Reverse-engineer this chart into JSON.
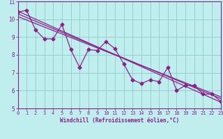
{
  "xlabel": "Windchill (Refroidissement éolien,°C)",
  "bg_color": "#c0eeee",
  "line_color": "#882288",
  "grid_color": "#99cccc",
  "ylim": [
    5,
    11
  ],
  "xlim": [
    0,
    23
  ],
  "yticks": [
    5,
    6,
    7,
    8,
    9,
    10,
    11
  ],
  "xticks": [
    0,
    1,
    2,
    3,
    4,
    5,
    6,
    7,
    8,
    9,
    10,
    11,
    12,
    13,
    14,
    15,
    16,
    17,
    18,
    19,
    20,
    21,
    22,
    23
  ],
  "data_x": [
    0,
    1,
    2,
    3,
    4,
    5,
    6,
    7,
    8,
    9,
    10,
    11,
    12,
    13,
    14,
    15,
    16,
    17,
    18,
    19,
    20,
    21,
    22,
    23
  ],
  "data_y": [
    10.4,
    10.5,
    9.4,
    8.9,
    8.9,
    9.7,
    8.3,
    7.3,
    8.3,
    8.25,
    8.75,
    8.35,
    7.5,
    6.6,
    6.4,
    6.6,
    6.5,
    7.3,
    6.0,
    6.3,
    6.3,
    5.8,
    5.8,
    5.4
  ],
  "trend_lines": [
    {
      "x0": 0,
      "y0": 10.45,
      "x1": 23,
      "y1": 5.35
    },
    {
      "x0": 0,
      "y0": 10.3,
      "x1": 23,
      "y1": 5.55
    },
    {
      "x0": 0,
      "y0": 10.15,
      "x1": 23,
      "y1": 5.65
    }
  ],
  "marker": "D",
  "markersize": 2.5,
  "linewidth": 0.9,
  "xlabel_fontsize": 5.5,
  "tick_fontsize": 5.0
}
